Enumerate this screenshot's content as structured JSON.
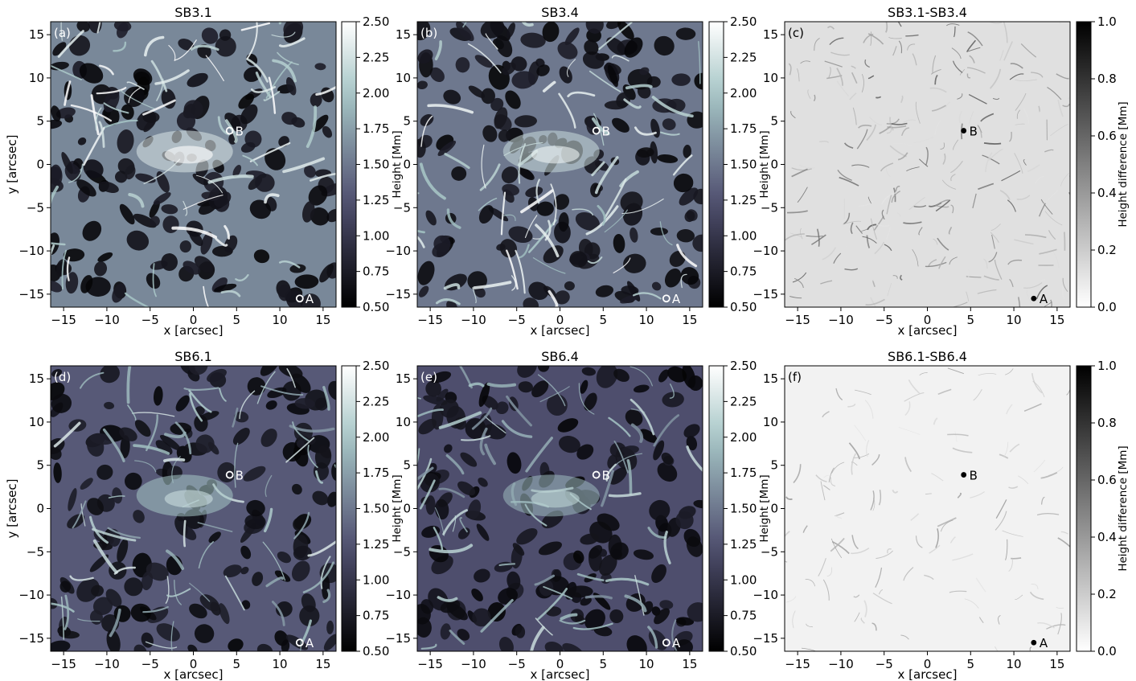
{
  "chart_data": [
    {
      "type": "heatmap",
      "panel": "a",
      "title": "SB3.1",
      "xlabel": "x [arcsec]",
      "ylabel": "y [arcsec]",
      "xlim": [
        -16.5,
        16.5
      ],
      "ylim": [
        -16.5,
        16.5
      ],
      "xticks": [
        -15,
        -10,
        -5,
        0,
        5,
        10,
        15
      ],
      "yticks": [
        -15,
        -10,
        -5,
        0,
        5,
        10,
        15
      ],
      "colorbar": {
        "label": "Height [Mm]",
        "range": [
          0.5,
          2.5
        ],
        "ticks": [
          "0.50",
          "0.75",
          "1.00",
          "1.25",
          "1.50",
          "1.75",
          "2.00",
          "2.25",
          "2.50"
        ],
        "colormap": "bone"
      },
      "markers": [
        {
          "label": "A",
          "x": 12.3,
          "y": -15.5,
          "style": "open"
        },
        {
          "label": "B",
          "x": 4.2,
          "y": 3.9,
          "style": "open"
        }
      ],
      "level": 0.55
    },
    {
      "type": "heatmap",
      "panel": "b",
      "title": "SB3.4",
      "xlabel": "x [arcsec]",
      "ylabel": "",
      "xlim": [
        -16.5,
        16.5
      ],
      "ylim": [
        -16.5,
        16.5
      ],
      "xticks": [
        -15,
        -10,
        -5,
        0,
        5,
        10,
        15
      ],
      "yticks": [
        -15,
        -10,
        -5,
        0,
        5,
        10,
        15
      ],
      "colorbar": {
        "label": "Height [Mm]",
        "range": [
          0.5,
          2.5
        ],
        "ticks": [
          "0.50",
          "0.75",
          "1.00",
          "1.25",
          "1.50",
          "1.75",
          "2.00",
          "2.25",
          "2.50"
        ],
        "colormap": "bone"
      },
      "markers": [
        {
          "label": "A",
          "x": 12.3,
          "y": -15.5,
          "style": "open"
        },
        {
          "label": "B",
          "x": 4.2,
          "y": 3.9,
          "style": "open"
        }
      ],
      "level": 0.5
    },
    {
      "type": "heatmap",
      "panel": "c",
      "title": "SB3.1-SB3.4",
      "xlabel": "x [arcsec]",
      "ylabel": "",
      "xlim": [
        -16.5,
        16.5
      ],
      "ylim": [
        -16.5,
        16.5
      ],
      "xticks": [
        -15,
        -10,
        -5,
        0,
        5,
        10,
        15
      ],
      "yticks": [
        -15,
        -10,
        -5,
        0,
        5,
        10,
        15
      ],
      "colorbar": {
        "label": "Height difference [Mm]",
        "range": [
          0.0,
          1.0
        ],
        "ticks": [
          "0.0",
          "0.2",
          "0.4",
          "0.6",
          "0.8",
          "1.0"
        ],
        "colormap": "gray_r"
      },
      "markers": [
        {
          "label": "A",
          "x": 12.3,
          "y": -15.5,
          "style": "filled"
        },
        {
          "label": "B",
          "x": 4.2,
          "y": 3.9,
          "style": "filled"
        }
      ],
      "level": 0.12
    },
    {
      "type": "heatmap",
      "panel": "d",
      "title": "SB6.1",
      "xlabel": "x [arcsec]",
      "ylabel": "y [arcsec]",
      "xlim": [
        -16.5,
        16.5
      ],
      "ylim": [
        -16.5,
        16.5
      ],
      "xticks": [
        -15,
        -10,
        -5,
        0,
        5,
        10,
        15
      ],
      "yticks": [
        -15,
        -10,
        -5,
        0,
        5,
        10,
        15
      ],
      "colorbar": {
        "label": "Height [Mm]",
        "range": [
          0.5,
          2.5
        ],
        "ticks": [
          "0.50",
          "0.75",
          "1.00",
          "1.25",
          "1.50",
          "1.75",
          "2.00",
          "2.25",
          "2.50"
        ],
        "colormap": "bone"
      },
      "markers": [
        {
          "label": "A",
          "x": 12.3,
          "y": -15.5,
          "style": "open"
        },
        {
          "label": "B",
          "x": 4.2,
          "y": 3.9,
          "style": "open"
        }
      ],
      "level": 0.4
    },
    {
      "type": "heatmap",
      "panel": "e",
      "title": "SB6.4",
      "xlabel": "x [arcsec]",
      "ylabel": "",
      "xlim": [
        -16.5,
        16.5
      ],
      "ylim": [
        -16.5,
        16.5
      ],
      "xticks": [
        -15,
        -10,
        -5,
        0,
        5,
        10,
        15
      ],
      "yticks": [
        -15,
        -10,
        -5,
        0,
        5,
        10,
        15
      ],
      "colorbar": {
        "label": "Height [Mm]",
        "range": [
          0.5,
          2.5
        ],
        "ticks": [
          "0.50",
          "0.75",
          "1.00",
          "1.25",
          "1.50",
          "1.75",
          "2.00",
          "2.25",
          "2.50"
        ],
        "colormap": "bone"
      },
      "markers": [
        {
          "label": "A",
          "x": 12.3,
          "y": -15.5,
          "style": "open"
        },
        {
          "label": "B",
          "x": 4.2,
          "y": 3.9,
          "style": "open"
        }
      ],
      "level": 0.36
    },
    {
      "type": "heatmap",
      "panel": "f",
      "title": "SB6.1-SB6.4",
      "xlabel": "x [arcsec]",
      "ylabel": "",
      "xlim": [
        -16.5,
        16.5
      ],
      "ylim": [
        -16.5,
        16.5
      ],
      "xticks": [
        -15,
        -10,
        -5,
        0,
        5,
        10,
        15
      ],
      "yticks": [
        -15,
        -10,
        -5,
        0,
        5,
        10,
        15
      ],
      "colorbar": {
        "label": "Height difference [Mm]",
        "range": [
          0.0,
          1.0
        ],
        "ticks": [
          "0.0",
          "0.2",
          "0.4",
          "0.6",
          "0.8",
          "1.0"
        ],
        "colormap": "gray_r"
      },
      "markers": [
        {
          "label": "A",
          "x": 12.3,
          "y": -15.5,
          "style": "filled"
        },
        {
          "label": "B",
          "x": 4.2,
          "y": 3.9,
          "style": "filled"
        }
      ],
      "level": 0.05
    }
  ],
  "panel_tags": [
    "(a)",
    "(b)",
    "(c)",
    "(d)",
    "(e)",
    "(f)"
  ]
}
